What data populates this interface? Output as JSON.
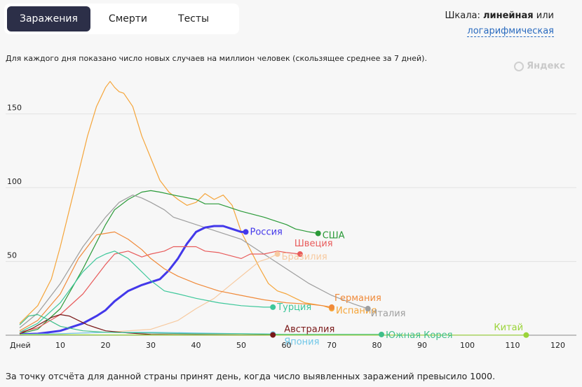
{
  "tabs": [
    {
      "label": "Заражения",
      "active": true
    },
    {
      "label": "Смерти",
      "active": false
    },
    {
      "label": "Тесты",
      "active": false
    }
  ],
  "scale": {
    "prefix": "Шкала:",
    "current": "линейная",
    "or": "или",
    "alternative": "логарифмическая"
  },
  "description": "Для каждого дня показано число новых случаев на миллион человек (скользящее среднее за 7 дней).",
  "watermark": "Яндекс",
  "footer": "За точку отсчёта для данной страны принят день, когда число выявленных заражений превысило 1000.",
  "chart_data": {
    "type": "line",
    "x_label": "Дней",
    "x_ticks": [
      10,
      20,
      30,
      40,
      50,
      60,
      70,
      80,
      90,
      100,
      110,
      120
    ],
    "y_ticks": [
      50,
      100,
      150
    ],
    "xlim": [
      1,
      121
    ],
    "ylim": [
      0,
      175
    ],
    "grid": true,
    "series": [
      {
        "name": "Испания",
        "color": "#f5a53a",
        "x": [
          1,
          5,
          8,
          10,
          12,
          14,
          16,
          18,
          20,
          21,
          22,
          23,
          24,
          26,
          28,
          30,
          32,
          34,
          36,
          38,
          40,
          42,
          44,
          46,
          48,
          50,
          52,
          54,
          56,
          58,
          60,
          62,
          64,
          66,
          68,
          70
        ],
        "y": [
          8,
          20,
          38,
          60,
          85,
          110,
          135,
          155,
          168,
          172,
          168,
          165,
          164,
          155,
          135,
          120,
          105,
          97,
          92,
          88,
          90,
          96,
          92,
          95,
          88,
          70,
          58,
          46,
          35,
          30,
          28,
          25,
          22,
          21,
          20,
          18
        ]
      },
      {
        "name": "США",
        "color": "#2a9a38",
        "x": [
          1,
          5,
          10,
          15,
          20,
          22,
          25,
          28,
          30,
          32,
          35,
          40,
          42,
          45,
          50,
          55,
          60,
          62,
          65,
          67
        ],
        "y": [
          1,
          4,
          18,
          45,
          75,
          85,
          92,
          97,
          98,
          97,
          95,
          92,
          89,
          89,
          84,
          80,
          75,
          72,
          70,
          69
        ]
      },
      {
        "name": "Италия",
        "color": "#9e9e9e",
        "x": [
          1,
          5,
          10,
          15,
          20,
          23,
          26,
          28,
          30,
          33,
          35,
          40,
          45,
          50,
          55,
          60,
          65,
          70,
          75,
          78
        ],
        "y": [
          5,
          15,
          35,
          60,
          80,
          90,
          95,
          93,
          90,
          85,
          80,
          75,
          70,
          65,
          55,
          45,
          35,
          27,
          21,
          18
        ]
      },
      {
        "name": "Россия",
        "color": "#4338ea",
        "x": [
          1,
          5,
          10,
          15,
          18,
          20,
          22,
          25,
          28,
          30,
          32,
          34,
          36,
          38,
          40,
          42,
          44,
          46,
          48,
          50,
          51
        ],
        "y": [
          0.5,
          1,
          3,
          8,
          13,
          17,
          23,
          30,
          34,
          36,
          38,
          44,
          52,
          62,
          70,
          73,
          74,
          74,
          72,
          70,
          70
        ]
      },
      {
        "name": "Швеция",
        "color": "#e85b5b",
        "x": [
          1,
          5,
          10,
          15,
          20,
          22,
          25,
          28,
          30,
          33,
          35,
          40,
          42,
          45,
          50,
          52,
          55,
          58,
          60,
          63
        ],
        "y": [
          2,
          5,
          14,
          28,
          48,
          55,
          57,
          53,
          55,
          57,
          60,
          60,
          57,
          56,
          52,
          55,
          55,
          57,
          56,
          55
        ]
      },
      {
        "name": "Бразилия",
        "color": "#f7caa0",
        "x": [
          1,
          10,
          20,
          30,
          36,
          40,
          44,
          48,
          52,
          54,
          56,
          58
        ],
        "y": [
          0.5,
          1,
          2,
          4,
          10,
          18,
          25,
          35,
          45,
          50,
          52,
          55
        ]
      },
      {
        "name": "Турция",
        "color": "#3cc79a",
        "x": [
          1,
          5,
          10,
          15,
          18,
          20,
          22,
          25,
          30,
          33,
          36,
          40,
          45,
          50,
          55,
          57
        ],
        "y": [
          2,
          8,
          22,
          43,
          52,
          55,
          57,
          52,
          37,
          30,
          28,
          25,
          22,
          20,
          19,
          19
        ]
      },
      {
        "name": "Германия",
        "color": "#f08a3a",
        "x": [
          1,
          5,
          10,
          14,
          18,
          22,
          25,
          28,
          30,
          33,
          36,
          40,
          45,
          50,
          55,
          60,
          65,
          68,
          70
        ],
        "y": [
          3,
          10,
          28,
          52,
          68,
          70,
          65,
          58,
          52,
          45,
          40,
          35,
          30,
          27,
          24,
          22,
          21,
          20,
          19
        ]
      },
      {
        "name": "Япония",
        "color": "#6fc7e8",
        "x": [
          1,
          10,
          20,
          30,
          40,
          50,
          57
        ],
        "y": [
          0.5,
          1,
          2,
          2,
          1.5,
          1,
          0.8
        ]
      },
      {
        "name": "Австралия",
        "color": "#7a1818",
        "x": [
          1,
          4,
          8,
          10,
          12,
          14,
          16,
          18,
          20,
          25,
          30,
          40,
          50,
          57
        ],
        "y": [
          1,
          5,
          12,
          14,
          13,
          10,
          7,
          5,
          3,
          1.5,
          0.5,
          0.3,
          0.2,
          0.2
        ]
      },
      {
        "name": "Южная Корея",
        "color": "#3fbf8a",
        "x": [
          1,
          3,
          5,
          7,
          10,
          15,
          20,
          30,
          40,
          50,
          60,
          70,
          81
        ],
        "y": [
          7,
          13,
          14,
          11,
          6,
          3,
          2,
          1.5,
          1,
          1,
          0.5,
          0.5,
          0.5
        ]
      },
      {
        "name": "Китай",
        "color": "#9bd43a",
        "x": [
          1,
          10,
          20,
          30,
          40,
          50,
          60,
          70,
          80,
          90,
          100,
          110,
          113
        ],
        "y": [
          0.3,
          0.3,
          0.2,
          0.2,
          0.1,
          0.1,
          0.1,
          0.1,
          0.1,
          0.1,
          0.1,
          0.1,
          0.1
        ]
      }
    ],
    "labels": [
      {
        "series": "Россия",
        "text": "Россия",
        "color": "#4338ea"
      },
      {
        "series": "США",
        "text": "США",
        "color": "#2a9a38"
      },
      {
        "series": "Швеция",
        "text": "Швеция",
        "color": "#e85b5b"
      },
      {
        "series": "Бразилия",
        "text": "Бразилия",
        "color": "#f7caa0"
      },
      {
        "series": "Турция",
        "text": "Турция",
        "color": "#3cc79a"
      },
      {
        "series": "Япония",
        "text": "Япония",
        "color": "#6fc7e8"
      },
      {
        "series": "Австралия",
        "text": "Австралия",
        "color": "#7a1818"
      },
      {
        "series": "Испания",
        "text": "Испания",
        "color": "#f5a53a"
      },
      {
        "series": "Италия",
        "text": "Италия",
        "color": "#9e9e9e"
      },
      {
        "series": "Германия",
        "text": "Германия",
        "color": "#f08a3a"
      },
      {
        "series": "Южная Корея",
        "text": "Южная Корея",
        "color": "#3fbf8a"
      },
      {
        "series": "Китай",
        "text": "Китай",
        "color": "#9bd43a"
      }
    ]
  }
}
